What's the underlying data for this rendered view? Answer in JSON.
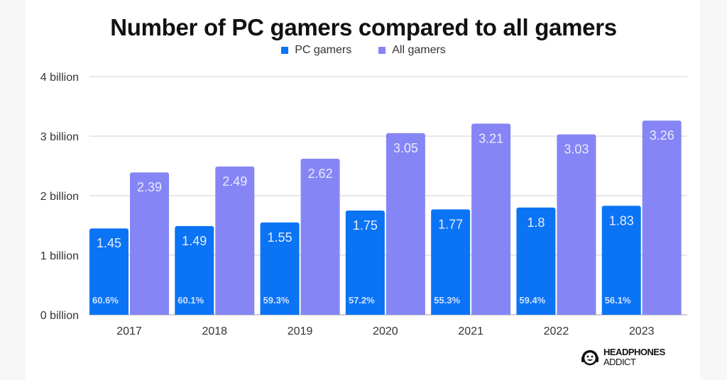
{
  "chart_data": {
    "type": "bar",
    "title": "Number of PC gamers compared to all gamers",
    "xlabel": "",
    "ylabel": "",
    "categories": [
      "2017",
      "2018",
      "2019",
      "2020",
      "2021",
      "2022",
      "2023"
    ],
    "series": [
      {
        "name": "PC gamers",
        "color": "#0a74f5",
        "values": [
          1.45,
          1.49,
          1.55,
          1.75,
          1.77,
          1.8,
          1.83
        ],
        "labels": [
          "1.45",
          "1.49",
          "1.55",
          "1.75",
          "1.77",
          "1.8",
          "1.83"
        ],
        "share_labels": [
          "60.6%",
          "60.1%",
          "59.3%",
          "57.2%",
          "55.3%",
          "59.4%",
          "56.1%"
        ]
      },
      {
        "name": "All gamers",
        "color": "#8585f5",
        "values": [
          2.39,
          2.49,
          2.62,
          3.05,
          3.21,
          3.03,
          3.26
        ],
        "labels": [
          "2.39",
          "2.49",
          "2.62",
          "3.05",
          "3.21",
          "3.03",
          "3.26"
        ]
      }
    ],
    "y_ticks": [
      0,
      1,
      2,
      3,
      4
    ],
    "y_tick_labels": [
      "0 billion",
      "1 billion",
      "2 billion",
      "3 billion",
      "4 billion"
    ],
    "ylim": [
      0,
      4
    ],
    "y_unit": "billion",
    "grid": true,
    "legend_position": "top-center"
  },
  "branding": {
    "logo_line1": "HEADPHONES",
    "logo_line2": "ADDICT"
  }
}
